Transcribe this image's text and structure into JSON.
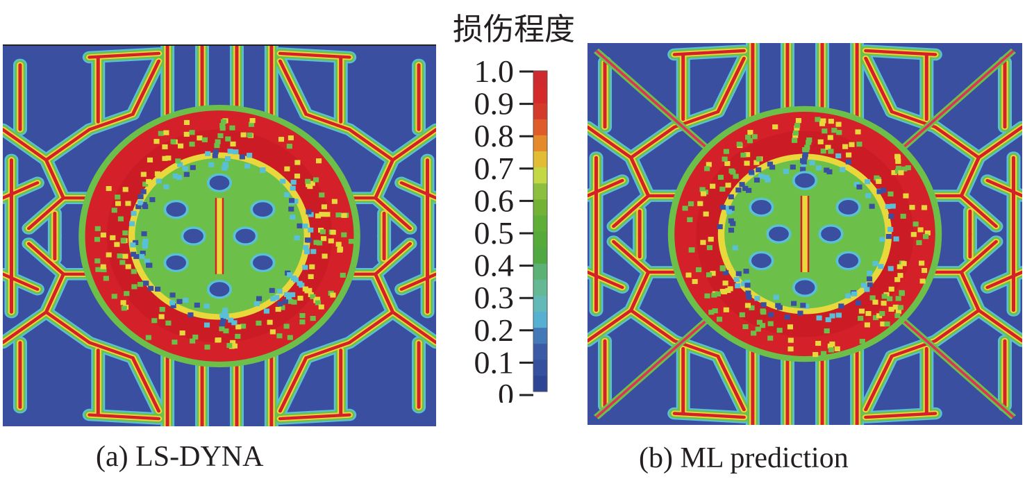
{
  "title": "损伤程度",
  "captions": {
    "a": "(a) LS-DYNA",
    "b": "(b) ML prediction"
  },
  "colorbar": {
    "ticks": [
      "1.0",
      "0.9",
      "0.8",
      "0.7",
      "0.6",
      "0.5",
      "0.4",
      "0.3",
      "0.2",
      "0.1",
      "0"
    ],
    "range": [
      0,
      1
    ],
    "colors": [
      "#2e4596",
      "#34509e",
      "#3a5aa6",
      "#4479b8",
      "#56b0d2",
      "#63b9b8",
      "#64b894",
      "#5cb276",
      "#4fa842",
      "#56aa3a",
      "#5fae35",
      "#72b336",
      "#8cbf3e",
      "#c4d843",
      "#e2bd33",
      "#e58a2b",
      "#df5b2a",
      "#d43a2a",
      "#d42a2a",
      "#cf2a2e"
    ]
  },
  "palette": {
    "blue": "#3a4fa0",
    "red": "#d42028",
    "green": "#6cc04a",
    "yellow": "#e8d83c",
    "cyan": "#5ac0d8"
  }
}
